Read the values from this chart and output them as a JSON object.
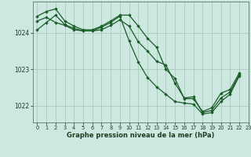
{
  "bg_color": "#cce8e0",
  "grid_color": "#aaccbb",
  "line_color": "#1a5c28",
  "marker_color": "#1a5c28",
  "xlabel": "Graphe pression niveau de la mer (hPa)",
  "xlim": [
    -0.5,
    23
  ],
  "ylim": [
    1021.55,
    1024.85
  ],
  "yticks": [
    1022,
    1023,
    1024
  ],
  "xticks": [
    0,
    1,
    2,
    3,
    4,
    5,
    6,
    7,
    8,
    9,
    10,
    11,
    12,
    13,
    14,
    15,
    16,
    17,
    18,
    19,
    20,
    21,
    22,
    23
  ],
  "series": [
    [
      1024.45,
      1024.58,
      1024.65,
      1024.32,
      1024.18,
      1024.08,
      1024.08,
      1024.18,
      1024.32,
      1024.48,
      1024.48,
      1024.18,
      1023.85,
      1023.6,
      1023.0,
      1022.75,
      1022.2,
      1022.2,
      1021.85,
      1021.95,
      1022.35,
      1022.45,
      1022.9,
      null
    ],
    [
      1024.32,
      1024.42,
      1024.28,
      1024.2,
      1024.08,
      1024.05,
      1024.05,
      1024.08,
      1024.2,
      1024.35,
      1024.18,
      1023.75,
      1023.5,
      1023.22,
      1023.12,
      1022.62,
      1022.22,
      1022.25,
      1021.82,
      1021.88,
      1022.22,
      1022.38,
      1022.85,
      null
    ],
    [
      1024.08,
      1024.28,
      1024.48,
      1024.22,
      1024.12,
      1024.05,
      1024.05,
      1024.15,
      1024.28,
      1024.45,
      1023.78,
      1023.2,
      1022.78,
      1022.52,
      1022.32,
      1022.12,
      1022.08,
      1022.05,
      1021.78,
      1021.82,
      1022.12,
      1022.32,
      1022.82,
      null
    ]
  ]
}
